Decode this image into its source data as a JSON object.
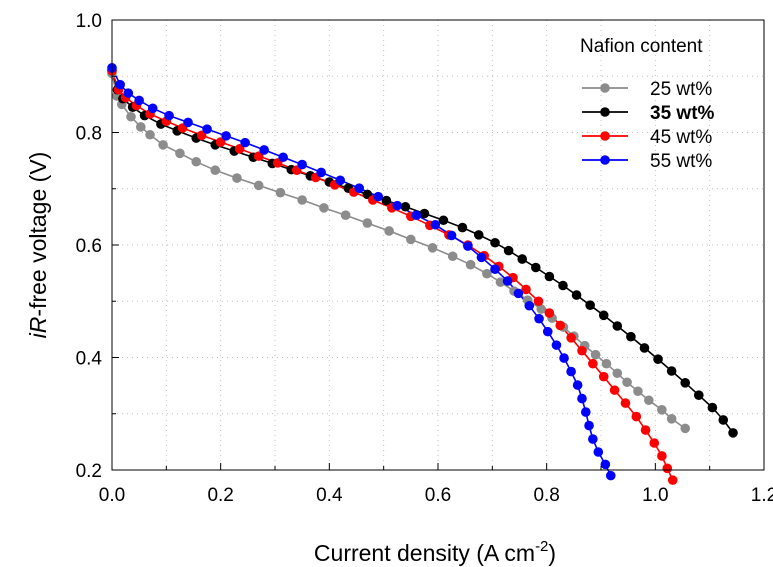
{
  "chart_data": {
    "type": "line",
    "xlabel_main": "Current density (A cm",
    "xlabel_sup": "-2",
    "xlabel_end": ")",
    "ylabel_italic": "iR",
    "ylabel_rest": "-free voltage (V)",
    "xlim": [
      0,
      1.2
    ],
    "ylim": [
      0.2,
      1.0
    ],
    "x_ticks": [
      0.0,
      0.2,
      0.4,
      0.6,
      0.8,
      1.0,
      1.2
    ],
    "x_tick_labels": [
      "0.0",
      "0.2",
      "0.4",
      "0.6",
      "0.8",
      "1.0",
      "1.2"
    ],
    "y_ticks": [
      0.2,
      0.4,
      0.6,
      0.8,
      1.0
    ],
    "y_tick_labels": [
      "0.2",
      "0.4",
      "0.6",
      "0.8",
      "1.0"
    ],
    "grid": true,
    "legend": {
      "title": "Nafion content",
      "position": "top-right"
    },
    "series": [
      {
        "name": "25 wt%",
        "color": "#8c8c8c",
        "bold": false,
        "points": [
          [
            0.0,
            0.905
          ],
          [
            0.009,
            0.865
          ],
          [
            0.018,
            0.85
          ],
          [
            0.035,
            0.828
          ],
          [
            0.053,
            0.81
          ],
          [
            0.07,
            0.796
          ],
          [
            0.094,
            0.778
          ],
          [
            0.125,
            0.763
          ],
          [
            0.155,
            0.748
          ],
          [
            0.19,
            0.733
          ],
          [
            0.23,
            0.719
          ],
          [
            0.27,
            0.706
          ],
          [
            0.31,
            0.693
          ],
          [
            0.35,
            0.68
          ],
          [
            0.39,
            0.666
          ],
          [
            0.43,
            0.653
          ],
          [
            0.47,
            0.639
          ],
          [
            0.51,
            0.625
          ],
          [
            0.55,
            0.61
          ],
          [
            0.59,
            0.595
          ],
          [
            0.627,
            0.58
          ],
          [
            0.66,
            0.565
          ],
          [
            0.69,
            0.549
          ],
          [
            0.715,
            0.534
          ],
          [
            0.74,
            0.518
          ],
          [
            0.765,
            0.502
          ],
          [
            0.79,
            0.486
          ],
          [
            0.81,
            0.47
          ],
          [
            0.831,
            0.454
          ],
          [
            0.85,
            0.438
          ],
          [
            0.87,
            0.421
          ],
          [
            0.89,
            0.405
          ],
          [
            0.91,
            0.389
          ],
          [
            0.93,
            0.372
          ],
          [
            0.948,
            0.356
          ],
          [
            0.968,
            0.34
          ],
          [
            0.988,
            0.324
          ],
          [
            1.012,
            0.307
          ],
          [
            1.03,
            0.291
          ],
          [
            1.055,
            0.274
          ]
        ]
      },
      {
        "name": "35 wt%",
        "color": "#000000",
        "bold": true,
        "points": [
          [
            0.0,
            0.91
          ],
          [
            0.01,
            0.876
          ],
          [
            0.02,
            0.86
          ],
          [
            0.038,
            0.845
          ],
          [
            0.06,
            0.83
          ],
          [
            0.09,
            0.815
          ],
          [
            0.12,
            0.803
          ],
          [
            0.155,
            0.79
          ],
          [
            0.19,
            0.778
          ],
          [
            0.225,
            0.767
          ],
          [
            0.26,
            0.756
          ],
          [
            0.295,
            0.745
          ],
          [
            0.33,
            0.734
          ],
          [
            0.365,
            0.723
          ],
          [
            0.4,
            0.712
          ],
          [
            0.435,
            0.701
          ],
          [
            0.47,
            0.69
          ],
          [
            0.505,
            0.679
          ],
          [
            0.54,
            0.668
          ],
          [
            0.575,
            0.656
          ],
          [
            0.61,
            0.644
          ],
          [
            0.645,
            0.631
          ],
          [
            0.675,
            0.618
          ],
          [
            0.705,
            0.604
          ],
          [
            0.73,
            0.59
          ],
          [
            0.755,
            0.575
          ],
          [
            0.78,
            0.56
          ],
          [
            0.805,
            0.544
          ],
          [
            0.83,
            0.528
          ],
          [
            0.855,
            0.511
          ],
          [
            0.88,
            0.493
          ],
          [
            0.905,
            0.475
          ],
          [
            0.93,
            0.456
          ],
          [
            0.955,
            0.437
          ],
          [
            0.98,
            0.417
          ],
          [
            1.005,
            0.397
          ],
          [
            1.03,
            0.376
          ],
          [
            1.055,
            0.355
          ],
          [
            1.08,
            0.333
          ],
          [
            1.105,
            0.311
          ],
          [
            1.125,
            0.289
          ],
          [
            1.143,
            0.266
          ]
        ]
      },
      {
        "name": "45 wt%",
        "color": "#ff0000",
        "bold": false,
        "points": [
          [
            0.0,
            0.91
          ],
          [
            0.012,
            0.876
          ],
          [
            0.025,
            0.862
          ],
          [
            0.045,
            0.848
          ],
          [
            0.07,
            0.833
          ],
          [
            0.1,
            0.82
          ],
          [
            0.13,
            0.808
          ],
          [
            0.165,
            0.795
          ],
          [
            0.2,
            0.783
          ],
          [
            0.235,
            0.771
          ],
          [
            0.27,
            0.758
          ],
          [
            0.305,
            0.746
          ],
          [
            0.34,
            0.733
          ],
          [
            0.375,
            0.72
          ],
          [
            0.41,
            0.707
          ],
          [
            0.445,
            0.694
          ],
          [
            0.48,
            0.68
          ],
          [
            0.515,
            0.666
          ],
          [
            0.55,
            0.651
          ],
          [
            0.585,
            0.635
          ],
          [
            0.62,
            0.618
          ],
          [
            0.655,
            0.6
          ],
          [
            0.685,
            0.581
          ],
          [
            0.712,
            0.562
          ],
          [
            0.738,
            0.542
          ],
          [
            0.762,
            0.521
          ],
          [
            0.785,
            0.5
          ],
          [
            0.805,
            0.479
          ],
          [
            0.825,
            0.457
          ],
          [
            0.845,
            0.435
          ],
          [
            0.865,
            0.412
          ],
          [
            0.885,
            0.389
          ],
          [
            0.905,
            0.366
          ],
          [
            0.925,
            0.342
          ],
          [
            0.945,
            0.319
          ],
          [
            0.965,
            0.295
          ],
          [
            0.982,
            0.271
          ],
          [
            0.998,
            0.248
          ],
          [
            1.012,
            0.225
          ],
          [
            1.022,
            0.203
          ],
          [
            1.032,
            0.182
          ]
        ]
      },
      {
        "name": "55 wt%",
        "color": "#0000ff",
        "bold": false,
        "points": [
          [
            0.0,
            0.915
          ],
          [
            0.015,
            0.885
          ],
          [
            0.03,
            0.87
          ],
          [
            0.05,
            0.857
          ],
          [
            0.075,
            0.843
          ],
          [
            0.105,
            0.83
          ],
          [
            0.14,
            0.818
          ],
          [
            0.175,
            0.806
          ],
          [
            0.21,
            0.794
          ],
          [
            0.245,
            0.782
          ],
          [
            0.28,
            0.769
          ],
          [
            0.315,
            0.756
          ],
          [
            0.35,
            0.743
          ],
          [
            0.385,
            0.729
          ],
          [
            0.42,
            0.715
          ],
          [
            0.455,
            0.701
          ],
          [
            0.49,
            0.686
          ],
          [
            0.525,
            0.67
          ],
          [
            0.56,
            0.653
          ],
          [
            0.595,
            0.636
          ],
          [
            0.625,
            0.617
          ],
          [
            0.655,
            0.598
          ],
          [
            0.68,
            0.578
          ],
          [
            0.705,
            0.557
          ],
          [
            0.728,
            0.536
          ],
          [
            0.748,
            0.514
          ],
          [
            0.768,
            0.492
          ],
          [
            0.786,
            0.469
          ],
          [
            0.802,
            0.446
          ],
          [
            0.818,
            0.422
          ],
          [
            0.832,
            0.399
          ],
          [
            0.845,
            0.375
          ],
          [
            0.857,
            0.351
          ],
          [
            0.865,
            0.327
          ],
          [
            0.872,
            0.303
          ],
          [
            0.878,
            0.279
          ],
          [
            0.885,
            0.255
          ],
          [
            0.895,
            0.232
          ],
          [
            0.908,
            0.21
          ],
          [
            0.918,
            0.19
          ]
        ]
      }
    ]
  }
}
